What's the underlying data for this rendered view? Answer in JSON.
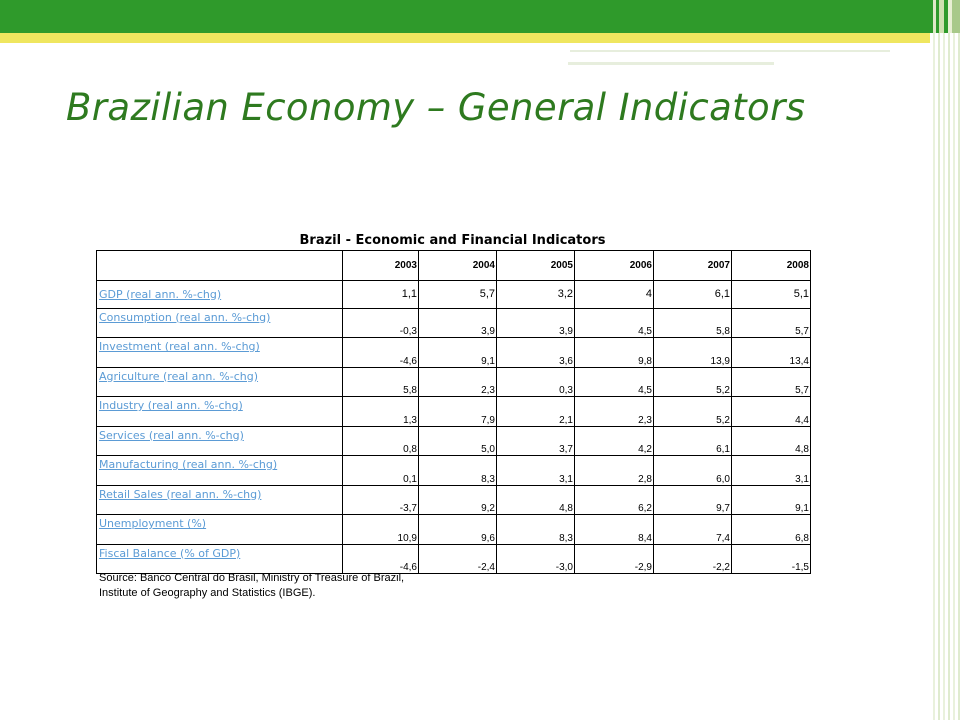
{
  "slide": {
    "title": "Brazilian Economy – General Indicators"
  },
  "table": {
    "title": "Brazil - Economic and Financial Indicators",
    "years": [
      "2003",
      "2004",
      "2005",
      "2006",
      "2007",
      "2008"
    ],
    "rows": [
      {
        "label": "GDP (real ann. %-chg)",
        "values": [
          "1,1",
          "5,7",
          "3,2",
          "4",
          "6,1",
          "5,1"
        ]
      },
      {
        "label": "Consumption (real ann. %-chg)",
        "values": [
          "-0,3",
          "3,9",
          "3,9",
          "4,5",
          "5,8",
          "5,7"
        ]
      },
      {
        "label": "Investment (real ann. %-chg)",
        "values": [
          "-4,6",
          "9,1",
          "3,6",
          "9,8",
          "13,9",
          "13,4"
        ]
      },
      {
        "label": "Agriculture (real ann. %-chg)",
        "values": [
          "5,8",
          "2,3",
          "0,3",
          "4,5",
          "5,2",
          "5,7"
        ]
      },
      {
        "label": "Industry (real ann. %-chg)",
        "values": [
          "1,3",
          "7,9",
          "2,1",
          "2,3",
          "5,2",
          "4,4"
        ]
      },
      {
        "label": "Services (real ann. %-chg)",
        "values": [
          "0,8",
          "5,0",
          "3,7",
          "4,2",
          "6,1",
          "4,8"
        ]
      },
      {
        "label": "Manufacturing (real ann. %-chg)",
        "values": [
          "0,1",
          "8,3",
          "3,1",
          "2,8",
          "6,0",
          "3,1"
        ]
      },
      {
        "label": "Retail Sales (real ann. %-chg)",
        "values": [
          "-3,7",
          "9,2",
          "4,8",
          "6,2",
          "9,7",
          "9,1"
        ]
      },
      {
        "label": "Unemployment (%)",
        "values": [
          "10,9",
          "9,6",
          "8,3",
          "8,4",
          "7,4",
          "6,8"
        ]
      },
      {
        "label": "Fiscal Balance (% of GDP)",
        "values": [
          "-4,6",
          "-2,4",
          "-3,0",
          "-2,9",
          "-2,2",
          "-1,5"
        ]
      }
    ],
    "source_line1": "Source: Banco Central  do Brasil, Ministry of Treasure of Brazil,",
    "source_line2": "Institute of Geography and Statistics (IBGE)."
  },
  "colors": {
    "top_bar": "#2f9a2b",
    "accent_bar": "#efe65f",
    "title_text": "#2e7a1f",
    "link_text": "#5b9bd5"
  }
}
